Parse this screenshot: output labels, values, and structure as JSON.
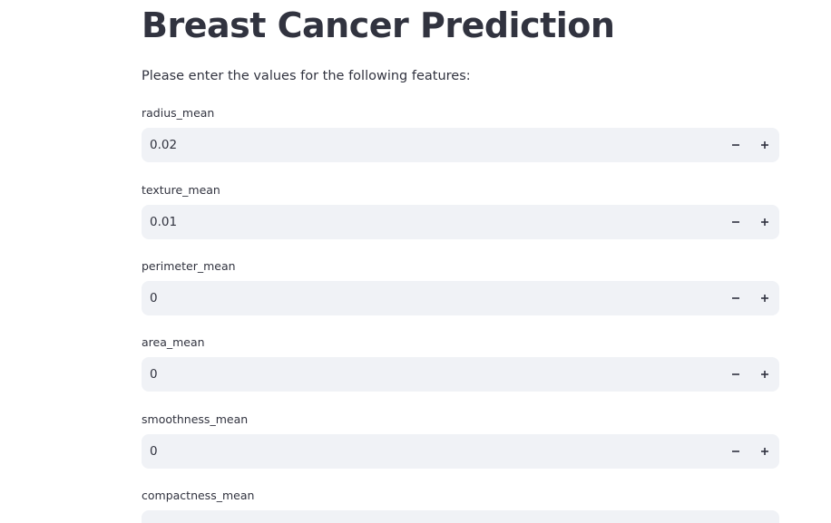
{
  "header": {
    "title": "Breast Cancer Prediction",
    "intro": "Please enter the values for the following features:"
  },
  "fields": [
    {
      "label": "radius_mean",
      "value": "0.02"
    },
    {
      "label": "texture_mean",
      "value": "0.01"
    },
    {
      "label": "perimeter_mean",
      "value": "0"
    },
    {
      "label": "area_mean",
      "value": "0"
    },
    {
      "label": "smoothness_mean",
      "value": "0"
    },
    {
      "label": "compactness_mean",
      "value": ""
    }
  ],
  "icons": {
    "decrement": "minus-icon",
    "increment": "plus-icon"
  },
  "colors": {
    "input_background": "#f0f2f6",
    "text": "#31333f"
  }
}
